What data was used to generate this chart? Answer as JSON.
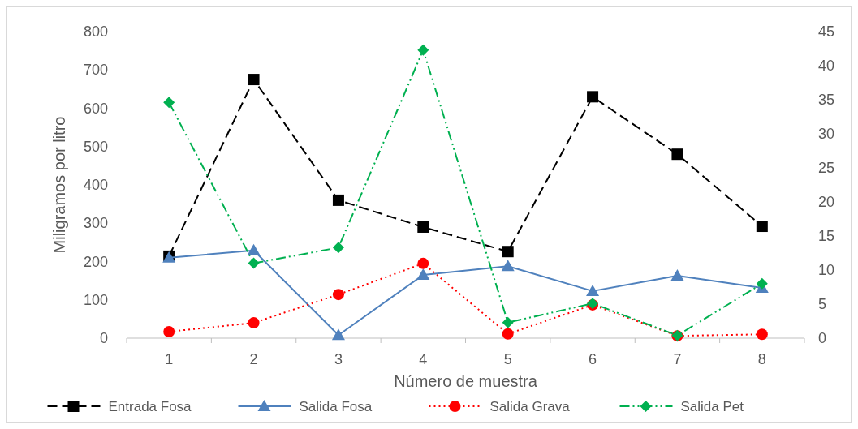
{
  "chart_data": {
    "type": "line",
    "xlabel": "Número de muestra",
    "ylabel": "Miligramos por litro",
    "categories": [
      "1",
      "2",
      "3",
      "4",
      "5",
      "6",
      "7",
      "8"
    ],
    "ylim": [
      0,
      800
    ],
    "yticks": [
      0,
      100,
      200,
      300,
      400,
      500,
      600,
      700,
      800
    ],
    "y2lim": [
      0,
      45
    ],
    "y2ticks": [
      0,
      5,
      10,
      15,
      20,
      25,
      30,
      35,
      40,
      45
    ],
    "grid": false,
    "legend": "bottom",
    "series": [
      {
        "name": "Entrada Fosa",
        "color": "#000000",
        "marker": "square",
        "line_style": "dashed",
        "values": [
          214,
          675,
          360,
          290,
          226,
          630,
          480,
          292
        ]
      },
      {
        "name": "Salida Fosa",
        "color": "#4f81bd",
        "marker": "triangle",
        "line_style": "solid",
        "values": [
          210,
          229,
          8,
          165,
          188,
          123,
          163,
          131
        ]
      },
      {
        "name": "Salida Grava",
        "color": "#ff0000",
        "marker": "circle",
        "line_style": "dotted",
        "values": [
          17,
          40,
          114,
          195,
          11,
          87,
          6,
          10
        ]
      },
      {
        "name": "Salida Pet",
        "color": "#00b050",
        "marker": "diamond",
        "line_style": "dashdot",
        "axis": "y2",
        "values": [
          34.6,
          11,
          13.3,
          42.3,
          2.3,
          5.1,
          0.4,
          8.0
        ]
      }
    ]
  }
}
